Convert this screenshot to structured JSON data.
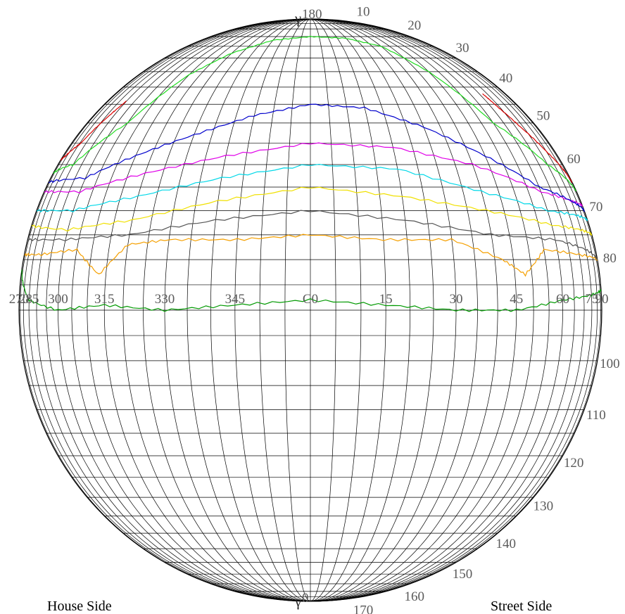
{
  "pole_top": {
    "marker": "γ",
    "value": "180"
  },
  "pole_bottom": {
    "marker": "γ",
    "value": "0"
  },
  "c_labels": [
    "270",
    "285",
    "300",
    "315",
    "330",
    "345",
    "C0",
    "15",
    "30",
    "45",
    "60",
    "75",
    "90"
  ],
  "gamma_labels": [
    "10",
    "20",
    "30",
    "40",
    "50",
    "60",
    "70",
    "80",
    "100",
    "110",
    "120",
    "130",
    "140",
    "150",
    "160",
    "170"
  ],
  "side_labels": {
    "left": "House Side",
    "right": "Street Side"
  },
  "chart_data": {
    "type": "line",
    "note": "isolux-style contours on a C-gamma (sinusoidal) photometric web; x = C-plane angle (deg, 270..90 via 0), y = gamma (deg, 0 at bottom pole, 180 at top pole)",
    "c_range": [
      -90,
      90
    ],
    "gamma_range": [
      0,
      180
    ],
    "series": [
      {
        "color": "#009900",
        "c": [
          -88,
          -75,
          -60,
          -45,
          -30,
          -15,
          0,
          15,
          30,
          45,
          60,
          75,
          88
        ],
        "gamma": [
          82,
          88,
          90,
          89,
          90,
          89,
          88,
          89,
          90,
          90,
          88,
          87,
          86
        ]
      },
      {
        "color": "#f5a000",
        "c": [
          -88,
          -70,
          -55,
          -47,
          -40,
          -30,
          -15,
          0,
          15,
          30,
          42,
          48,
          55,
          70,
          88
        ],
        "gamma": [
          79,
          79,
          78,
          83,
          77,
          76,
          76,
          75,
          76,
          76,
          80,
          83,
          78,
          79,
          80
        ]
      },
      {
        "color": "#555555",
        "c": [
          -88,
          -60,
          -40,
          -20,
          0,
          20,
          40,
          60,
          75,
          88
        ],
        "gamma": [
          76,
          76,
          75,
          72,
          70,
          72,
          75,
          76,
          78,
          80
        ]
      },
      {
        "color": "#f0e000",
        "c": [
          -88,
          -60,
          -40,
          -20,
          0,
          20,
          40,
          60,
          75,
          88
        ],
        "gamma": [
          73,
          74,
          72,
          68,
          65,
          67,
          70,
          73,
          74,
          75
        ]
      },
      {
        "color": "#00d8e8",
        "c": [
          -88,
          -60,
          -40,
          -20,
          0,
          20,
          40,
          60,
          75,
          88
        ],
        "gamma": [
          70,
          70,
          67,
          63,
          60,
          61,
          66,
          70,
          71,
          72
        ]
      },
      {
        "color": "#e000e8",
        "c": [
          -88,
          -60,
          -40,
          -20,
          0,
          20,
          40,
          60,
          75,
          88
        ],
        "gamma": [
          66,
          66,
          62,
          58,
          55,
          56,
          60,
          66,
          68,
          69
        ]
      },
      {
        "color": "#0000cc",
        "c": [
          -88,
          -60,
          -45,
          -30,
          -15,
          0,
          15,
          30,
          45,
          60,
          75,
          88
        ],
        "gamma": [
          64,
          63,
          58,
          53,
          48,
          45,
          46,
          51,
          58,
          65,
          68,
          70
        ]
      },
      {
        "color": "#22dd22",
        "c": [
          -88,
          -70,
          -55,
          -45,
          -35,
          -20,
          0,
          20,
          35,
          45,
          55,
          70,
          88
        ],
        "gamma": [
          62,
          60,
          50,
          36,
          28,
          22,
          20,
          21,
          25,
          35,
          50,
          60,
          66
        ]
      },
      {
        "color": "#dd0000",
        "c": [
          -88,
          -82,
          -74,
          -68,
          -65
        ],
        "gamma": [
          59,
          58,
          55,
          48,
          44
        ]
      },
      {
        "color": "#dd0000",
        "c": [
          62,
          64,
          68,
          75,
          82,
          88
        ],
        "gamma": [
          42,
          46,
          51,
          57,
          61,
          64
        ]
      }
    ]
  }
}
